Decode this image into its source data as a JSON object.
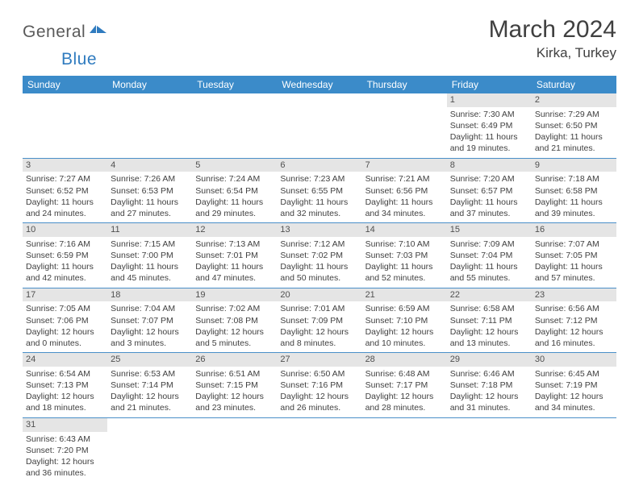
{
  "logo": {
    "general": "General",
    "blue": "Blue"
  },
  "title": "March 2024",
  "location": "Kirka, Turkey",
  "colors": {
    "header_bg": "#3b8bc9",
    "header_text": "#ffffff",
    "daynum_bg": "#e5e5e5",
    "text": "#404040",
    "row_border": "#4a8fc8",
    "logo_gray": "#5a5a5a",
    "logo_blue": "#2f7bbf"
  },
  "weekdays": [
    "Sunday",
    "Monday",
    "Tuesday",
    "Wednesday",
    "Thursday",
    "Friday",
    "Saturday"
  ],
  "weeks": [
    [
      null,
      null,
      null,
      null,
      null,
      {
        "n": "1",
        "sr": "7:30 AM",
        "ss": "6:49 PM",
        "dl": "11 hours",
        "dm": "and 19 minutes."
      },
      {
        "n": "2",
        "sr": "7:29 AM",
        "ss": "6:50 PM",
        "dl": "11 hours",
        "dm": "and 21 minutes."
      }
    ],
    [
      {
        "n": "3",
        "sr": "7:27 AM",
        "ss": "6:52 PM",
        "dl": "11 hours",
        "dm": "and 24 minutes."
      },
      {
        "n": "4",
        "sr": "7:26 AM",
        "ss": "6:53 PM",
        "dl": "11 hours",
        "dm": "and 27 minutes."
      },
      {
        "n": "5",
        "sr": "7:24 AM",
        "ss": "6:54 PM",
        "dl": "11 hours",
        "dm": "and 29 minutes."
      },
      {
        "n": "6",
        "sr": "7:23 AM",
        "ss": "6:55 PM",
        "dl": "11 hours",
        "dm": "and 32 minutes."
      },
      {
        "n": "7",
        "sr": "7:21 AM",
        "ss": "6:56 PM",
        "dl": "11 hours",
        "dm": "and 34 minutes."
      },
      {
        "n": "8",
        "sr": "7:20 AM",
        "ss": "6:57 PM",
        "dl": "11 hours",
        "dm": "and 37 minutes."
      },
      {
        "n": "9",
        "sr": "7:18 AM",
        "ss": "6:58 PM",
        "dl": "11 hours",
        "dm": "and 39 minutes."
      }
    ],
    [
      {
        "n": "10",
        "sr": "7:16 AM",
        "ss": "6:59 PM",
        "dl": "11 hours",
        "dm": "and 42 minutes."
      },
      {
        "n": "11",
        "sr": "7:15 AM",
        "ss": "7:00 PM",
        "dl": "11 hours",
        "dm": "and 45 minutes."
      },
      {
        "n": "12",
        "sr": "7:13 AM",
        "ss": "7:01 PM",
        "dl": "11 hours",
        "dm": "and 47 minutes."
      },
      {
        "n": "13",
        "sr": "7:12 AM",
        "ss": "7:02 PM",
        "dl": "11 hours",
        "dm": "and 50 minutes."
      },
      {
        "n": "14",
        "sr": "7:10 AM",
        "ss": "7:03 PM",
        "dl": "11 hours",
        "dm": "and 52 minutes."
      },
      {
        "n": "15",
        "sr": "7:09 AM",
        "ss": "7:04 PM",
        "dl": "11 hours",
        "dm": "and 55 minutes."
      },
      {
        "n": "16",
        "sr": "7:07 AM",
        "ss": "7:05 PM",
        "dl": "11 hours",
        "dm": "and 57 minutes."
      }
    ],
    [
      {
        "n": "17",
        "sr": "7:05 AM",
        "ss": "7:06 PM",
        "dl": "12 hours",
        "dm": "and 0 minutes."
      },
      {
        "n": "18",
        "sr": "7:04 AM",
        "ss": "7:07 PM",
        "dl": "12 hours",
        "dm": "and 3 minutes."
      },
      {
        "n": "19",
        "sr": "7:02 AM",
        "ss": "7:08 PM",
        "dl": "12 hours",
        "dm": "and 5 minutes."
      },
      {
        "n": "20",
        "sr": "7:01 AM",
        "ss": "7:09 PM",
        "dl": "12 hours",
        "dm": "and 8 minutes."
      },
      {
        "n": "21",
        "sr": "6:59 AM",
        "ss": "7:10 PM",
        "dl": "12 hours",
        "dm": "and 10 minutes."
      },
      {
        "n": "22",
        "sr": "6:58 AM",
        "ss": "7:11 PM",
        "dl": "12 hours",
        "dm": "and 13 minutes."
      },
      {
        "n": "23",
        "sr": "6:56 AM",
        "ss": "7:12 PM",
        "dl": "12 hours",
        "dm": "and 16 minutes."
      }
    ],
    [
      {
        "n": "24",
        "sr": "6:54 AM",
        "ss": "7:13 PM",
        "dl": "12 hours",
        "dm": "and 18 minutes."
      },
      {
        "n": "25",
        "sr": "6:53 AM",
        "ss": "7:14 PM",
        "dl": "12 hours",
        "dm": "and 21 minutes."
      },
      {
        "n": "26",
        "sr": "6:51 AM",
        "ss": "7:15 PM",
        "dl": "12 hours",
        "dm": "and 23 minutes."
      },
      {
        "n": "27",
        "sr": "6:50 AM",
        "ss": "7:16 PM",
        "dl": "12 hours",
        "dm": "and 26 minutes."
      },
      {
        "n": "28",
        "sr": "6:48 AM",
        "ss": "7:17 PM",
        "dl": "12 hours",
        "dm": "and 28 minutes."
      },
      {
        "n": "29",
        "sr": "6:46 AM",
        "ss": "7:18 PM",
        "dl": "12 hours",
        "dm": "and 31 minutes."
      },
      {
        "n": "30",
        "sr": "6:45 AM",
        "ss": "7:19 PM",
        "dl": "12 hours",
        "dm": "and 34 minutes."
      }
    ],
    [
      {
        "n": "31",
        "sr": "6:43 AM",
        "ss": "7:20 PM",
        "dl": "12 hours",
        "dm": "and 36 minutes."
      },
      null,
      null,
      null,
      null,
      null,
      null
    ]
  ],
  "labels": {
    "sunrise": "Sunrise:",
    "sunset": "Sunset:",
    "daylight": "Daylight:"
  }
}
